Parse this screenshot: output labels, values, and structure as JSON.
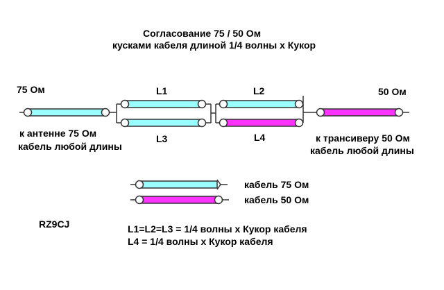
{
  "title": {
    "line1": "Согласование 75 / 50 Ом",
    "line2": "кусками кабеля длиной 1/4 волны х Кукор"
  },
  "labels": {
    "input_impedance": "75 Ом",
    "output_impedance": "50 Ом",
    "L1": "L1",
    "L2": "L2",
    "L3": "L3",
    "L4": "L4",
    "antenna_side_1": "к антенне 75 Ом",
    "antenna_side_2": "кабель любой длины",
    "trx_side_1": "к трансиверу 50 Ом",
    "trx_side_2": "кабель любой длины"
  },
  "legend": {
    "cable75": "кабель 75 Ом",
    "cable50": "кабель 50 Ом"
  },
  "author": "RZ9CJ",
  "formulas": {
    "line1": "L1=L2=L3 = 1/4 волны х Кукор  кабеля",
    "line2": "L4 = 1/4 волны х Кукор  кабеля"
  },
  "colors": {
    "cable75": "#99ffff",
    "cable50": "#ff33ff",
    "line": "#333333"
  }
}
